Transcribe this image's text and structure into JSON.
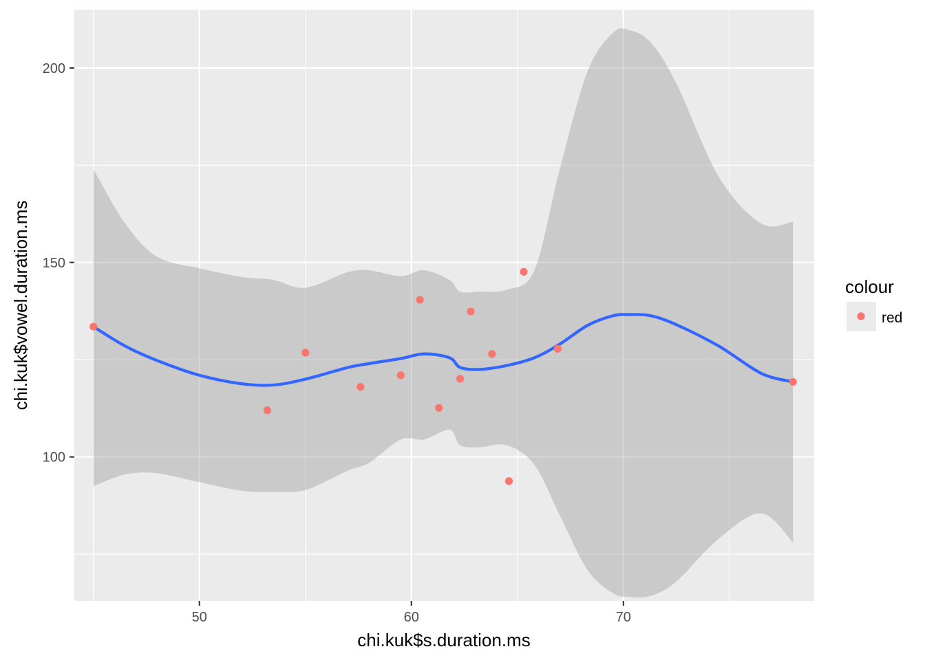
{
  "chart_data": {
    "type": "scatter",
    "xlabel": "chi.kuk$s.duration.ms",
    "ylabel": "chi.kuk$vowel.duration.ms",
    "xlim": [
      44.1,
      79.0
    ],
    "ylim": [
      63.0,
      215.0
    ],
    "x_ticks": [
      {
        "value": 50,
        "label": "50"
      },
      {
        "value": 60,
        "label": "60"
      },
      {
        "value": 70,
        "label": "70"
      }
    ],
    "y_ticks": [
      {
        "value": 100,
        "label": "100"
      },
      {
        "value": 150,
        "label": "150"
      },
      {
        "value": 200,
        "label": "200"
      }
    ],
    "grid": true,
    "legend": {
      "title": "colour",
      "position": "right",
      "entries": [
        {
          "label": "red",
          "color": "#F8766D"
        }
      ]
    },
    "series": [
      {
        "kind": "points",
        "legend_label": "red",
        "color": "#F8766D",
        "points": [
          {
            "x": 45.0,
            "y": 133.5
          },
          {
            "x": 53.2,
            "y": 112.0
          },
          {
            "x": 55.0,
            "y": 126.8
          },
          {
            "x": 57.6,
            "y": 118.0
          },
          {
            "x": 59.5,
            "y": 121.0
          },
          {
            "x": 60.4,
            "y": 140.4
          },
          {
            "x": 61.3,
            "y": 112.6
          },
          {
            "x": 62.3,
            "y": 120.1
          },
          {
            "x": 62.8,
            "y": 137.4
          },
          {
            "x": 63.8,
            "y": 126.5
          },
          {
            "x": 64.6,
            "y": 93.8
          },
          {
            "x": 65.3,
            "y": 147.6
          },
          {
            "x": 66.9,
            "y": 127.8
          },
          {
            "x": 78.0,
            "y": 119.3
          }
        ]
      },
      {
        "kind": "smooth",
        "color": "#3366FF",
        "ribbon_color": "#999999",
        "x": [
          45.0,
          46.5,
          48.0,
          50.0,
          52.0,
          53.5,
          55.0,
          57.0,
          58.0,
          59.5,
          60.6,
          61.8,
          62.3,
          63.2,
          64.5,
          65.8,
          67.0,
          68.3,
          69.5,
          70.3,
          71.3,
          72.5,
          74.5,
          76.5,
          78.0
        ],
        "y": [
          133.5,
          128.5,
          124.8,
          121.0,
          118.8,
          118.5,
          120.0,
          123.0,
          124.0,
          125.3,
          126.5,
          125.5,
          123.0,
          122.5,
          123.5,
          125.5,
          129.0,
          133.8,
          136.3,
          136.6,
          136.3,
          134.0,
          128.5,
          121.5,
          119.3
        ],
        "lower": [
          92.5,
          95.5,
          95.8,
          93.5,
          91.3,
          91.0,
          91.5,
          96.5,
          98.5,
          104.5,
          104.5,
          107.0,
          103.0,
          102.5,
          103.0,
          98.0,
          85.0,
          71.0,
          65.0,
          64.0,
          64.3,
          68.0,
          79.0,
          85.5,
          78.0
        ],
        "upper": [
          174.0,
          160.0,
          151.5,
          148.5,
          146.3,
          145.5,
          143.5,
          147.5,
          148.0,
          146.5,
          148.0,
          145.5,
          142.5,
          142.5,
          143.0,
          148.0,
          174.0,
          199.0,
          209.0,
          209.7,
          206.5,
          196.0,
          172.0,
          160.0,
          160.5
        ]
      }
    ]
  }
}
